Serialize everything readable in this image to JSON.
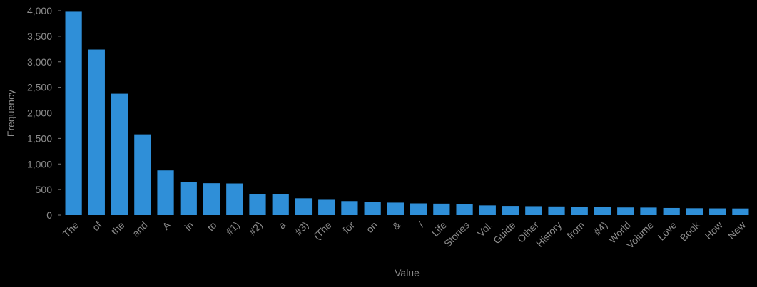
{
  "chart_data": {
    "type": "bar",
    "xlabel": "Value",
    "ylabel": "Frequency",
    "ylim": [
      0,
      4000
    ],
    "yticks": [
      0,
      500,
      1000,
      1500,
      2000,
      2500,
      3000,
      3500,
      4000
    ],
    "ytick_labels": [
      "0",
      "500",
      "1,000",
      "1,500",
      "2,000",
      "2,500",
      "3,000",
      "3,500",
      "4,000"
    ],
    "grid": false,
    "legend": "none",
    "categories": [
      "The",
      "of",
      "the",
      "and",
      "A",
      "in",
      "to",
      "#1)",
      "#2)",
      "a",
      "#3)",
      "(The",
      "for",
      "on",
      "&",
      "/",
      "Life",
      "Stories",
      "Vol.",
      "Guide",
      "Other",
      "History",
      "from",
      "#4)",
      "World",
      "Volume",
      "Love",
      "Book",
      "How",
      "New"
    ],
    "values": [
      3980,
      3240,
      2375,
      1580,
      875,
      650,
      625,
      620,
      415,
      405,
      330,
      300,
      275,
      260,
      245,
      230,
      225,
      220,
      190,
      180,
      175,
      170,
      165,
      155,
      150,
      148,
      140,
      135,
      132,
      130
    ],
    "colors": {
      "bar": "#2F8FD8",
      "text": "#8C8C8C",
      "axis": "#7a7a7a",
      "background": "#000000"
    }
  }
}
